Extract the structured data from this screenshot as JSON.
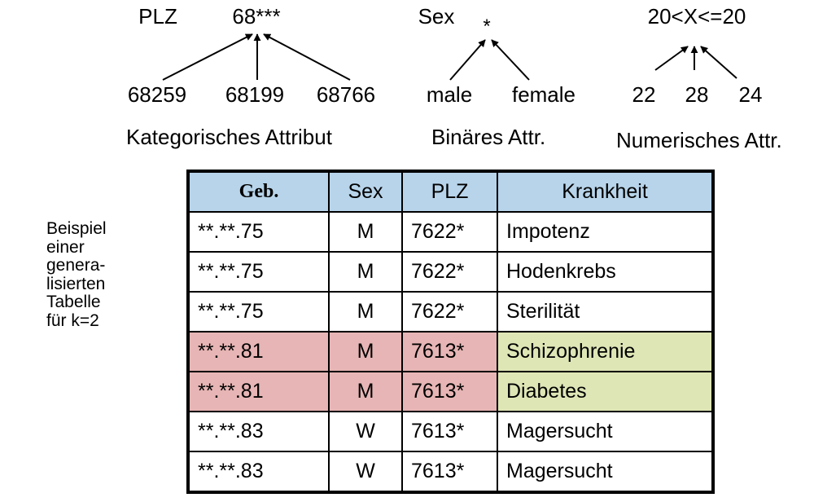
{
  "hierarchies": {
    "categorical": {
      "name": "PLZ",
      "root": "68***",
      "leaves": [
        "68259",
        "68199",
        "68766"
      ],
      "caption": "Kategorisches Attribut"
    },
    "binary": {
      "name": "Sex",
      "root": "*",
      "leaves": [
        "male",
        "female"
      ],
      "caption": "Binäres Attr."
    },
    "numeric": {
      "root": "20<X<=20",
      "leaves": [
        "22",
        "28",
        "24"
      ],
      "caption": "Numerisches Attr."
    }
  },
  "side_caption": {
    "lines": [
      "Beispiel",
      "einer",
      "genera-",
      "lisierten",
      "Tabelle",
      "für k=2"
    ]
  },
  "table": {
    "columns": [
      "Geb.",
      "Sex",
      "PLZ",
      "Krankheit"
    ],
    "rows": [
      {
        "geb": "**.**.75",
        "sex": "M",
        "plz": "7622*",
        "krankheit": "Impotenz",
        "highlighted": false
      },
      {
        "geb": "**.**.75",
        "sex": "M",
        "plz": "7622*",
        "krankheit": "Hodenkrebs",
        "highlighted": false
      },
      {
        "geb": "**.**.75",
        "sex": "M",
        "plz": "7622*",
        "krankheit": "Sterilität",
        "highlighted": false
      },
      {
        "geb": "**.**.81",
        "sex": "M",
        "plz": "7613*",
        "krankheit": "Schizophrenie",
        "highlighted": true
      },
      {
        "geb": "**.**.81",
        "sex": "M",
        "plz": "7613*",
        "krankheit": "Diabetes",
        "highlighted": true
      },
      {
        "geb": "**.**.83",
        "sex": "W",
        "plz": "7613*",
        "krankheit": "Magersucht",
        "highlighted": false
      },
      {
        "geb": "**.**.83",
        "sex": "W",
        "plz": "7613*",
        "krankheit": "Magersucht",
        "highlighted": false
      }
    ]
  },
  "colors": {
    "header": "#b7d4ea",
    "highlight_quasi_identifier": "#e7b5b5",
    "highlight_sensitive": "#dfe6b6"
  }
}
